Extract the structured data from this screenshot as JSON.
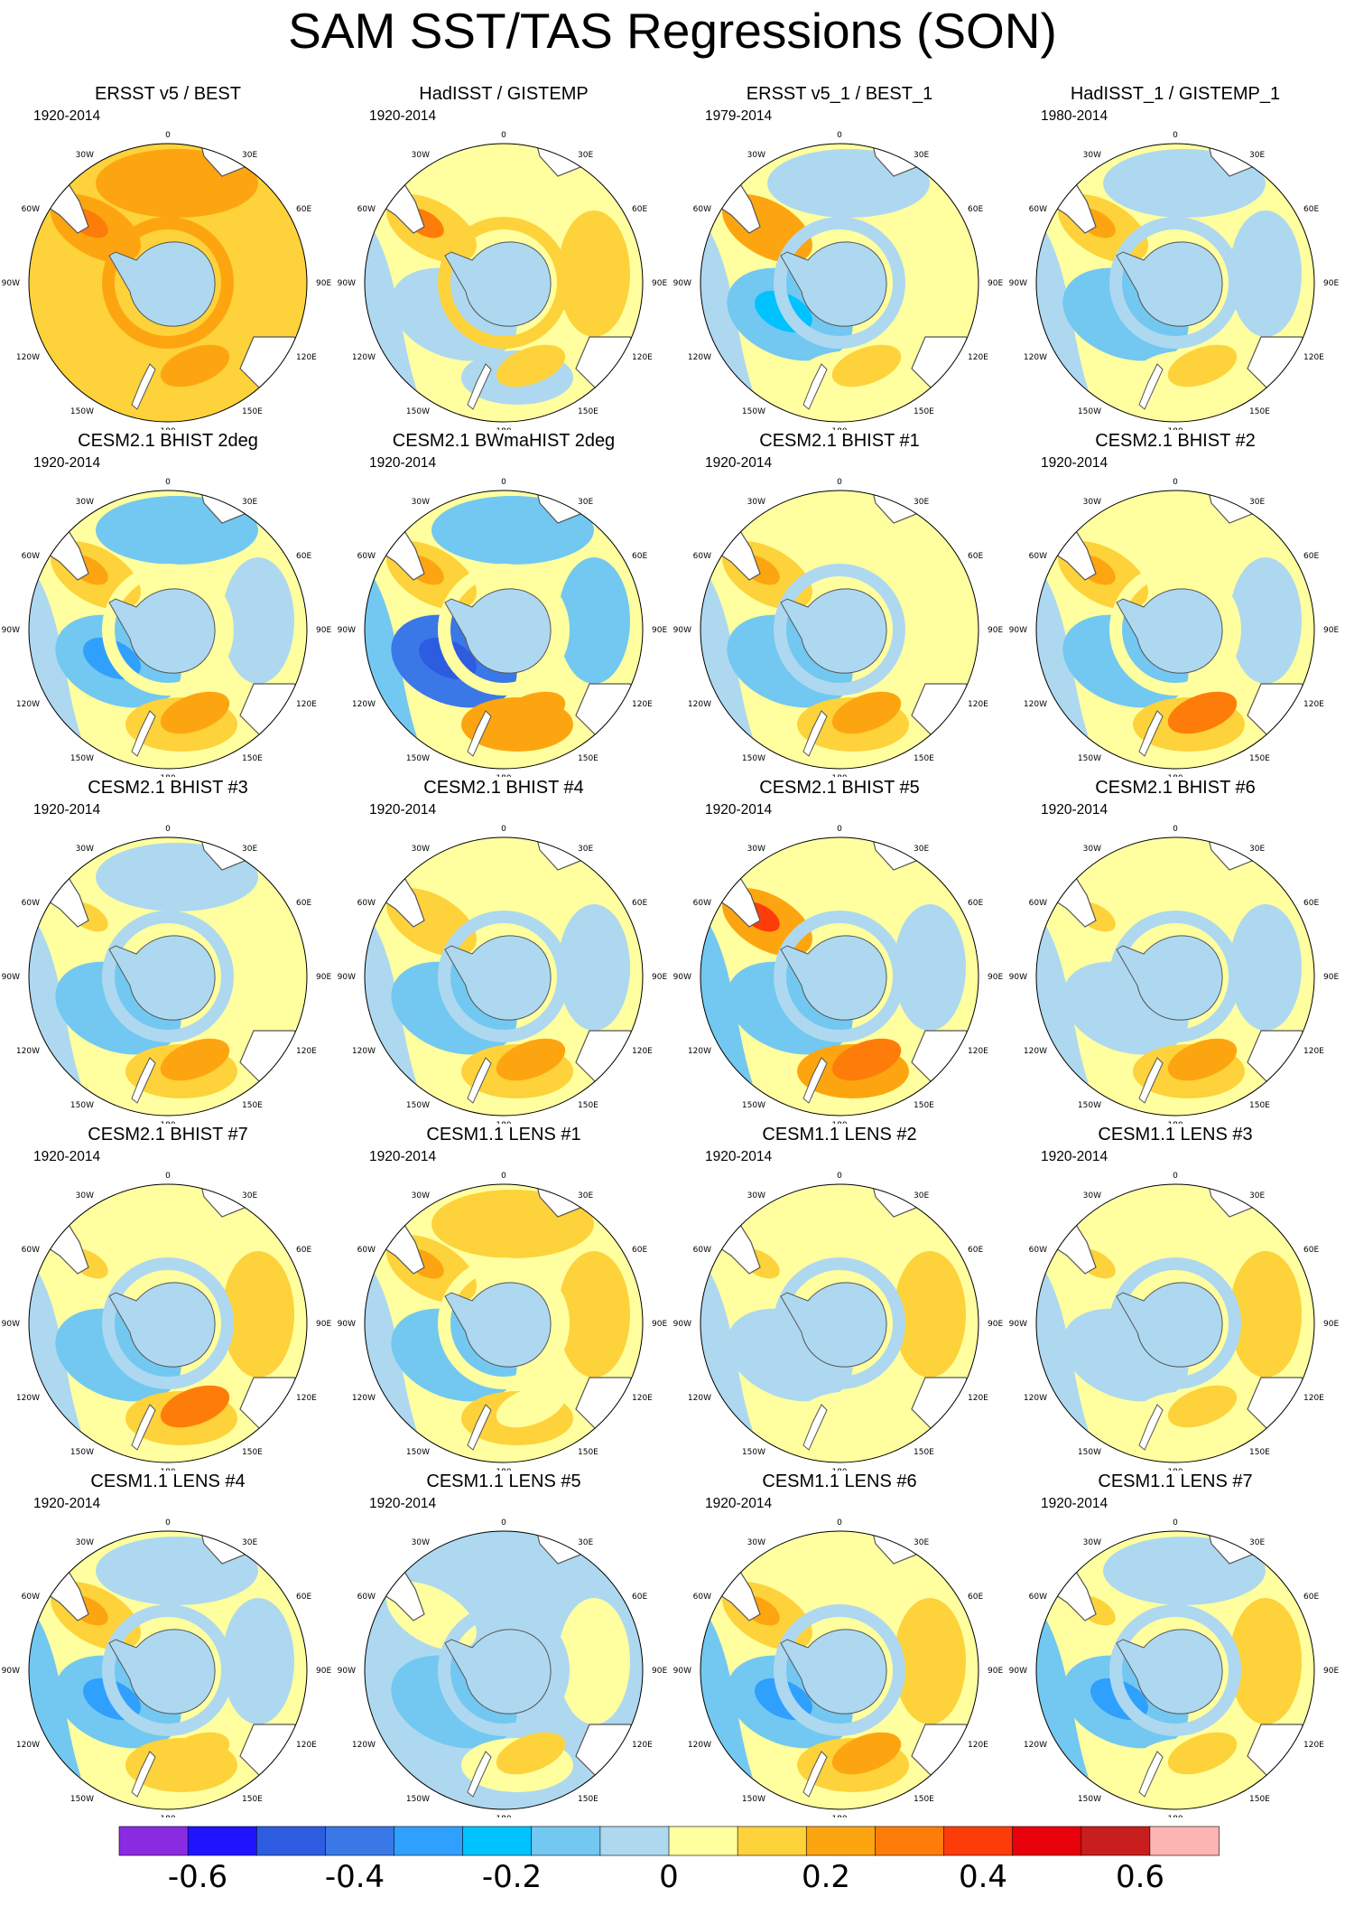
{
  "title": "SAM SST/TAS Regressions (SON)",
  "palette": {
    "ocean_default": "#ffffa0",
    "antarctica": "#add8f0",
    "coast": "#555555",
    "land": "#ffffff"
  },
  "longitude_labels": [
    "0",
    "30E",
    "60E",
    "90E",
    "120E",
    "150E",
    "180",
    "150W",
    "120W",
    "90W",
    "60W",
    "30W"
  ],
  "panels": [
    {
      "title": "ERSST v5 / BEST",
      "period": "1920-2014",
      "pattern": {
        "base": "#fdd23a",
        "rw": "#fdd23a",
        "pac": "#fdd23a",
        "ind": "#fdd23a",
        "aus": "#fda510",
        "sa": "#fda510",
        "sa_core": "#fe7d0a",
        "ring": "#fda510",
        "atl": "#fda510",
        "spac": "#fdd23a"
      }
    },
    {
      "title": "HadISST / GISTEMP",
      "period": "1920-2014",
      "pattern": {
        "base": "#ffffa0",
        "rw": "#add8f0",
        "pac": "#add8f0",
        "ind": "#fdd23a",
        "aus": "#fdd23a",
        "sa": "#fdd23a",
        "sa_core": "#fe7d0a",
        "ring": "#fdd23a",
        "atl": "#ffffa0",
        "spac": "#add8f0"
      }
    },
    {
      "title": "ERSST v5_1 / BEST_1",
      "period": "1979-2014",
      "pattern": {
        "base": "#ffffa0",
        "rw": "#add8f0",
        "pac": "#72c8f0",
        "pac_core": "#00c2ff",
        "ind": "#ffffa0",
        "aus": "#fdd23a",
        "sa": "#fda510",
        "sa_core": "#fda510",
        "ring": "#add8f0",
        "atl": "#add8f0",
        "spac": "#ffffa0"
      }
    },
    {
      "title": "HadISST_1 / GISTEMP_1",
      "period": "1980-2014",
      "pattern": {
        "base": "#ffffa0",
        "rw": "#add8f0",
        "pac": "#72c8f0",
        "ind": "#add8f0",
        "aus": "#fdd23a",
        "sa": "#fdd23a",
        "sa_core": "#fda510",
        "ring": "#add8f0",
        "atl": "#add8f0",
        "spac": "#ffffa0"
      }
    },
    {
      "title": "CESM2.1 BHIST 2deg",
      "period": "1920-2014",
      "pattern": {
        "base": "#ffffa0",
        "rw": "#add8f0",
        "pac": "#72c8f0",
        "pac_core": "#30a0ff",
        "ind": "#add8f0",
        "aus": "#fda510",
        "sa": "#fdd23a",
        "sa_core": "#fda510",
        "ring": "#ffffa0",
        "atl": "#72c8f0",
        "spac": "#fdd23a"
      }
    },
    {
      "title": "CESM2.1 BWmaHIST 2deg",
      "period": "1920-2014",
      "pattern": {
        "base": "#ffffa0",
        "rw": "#72c8f0",
        "pac": "#3a78e8",
        "pac_core": "#2e5ce0",
        "ind": "#72c8f0",
        "aus": "#fda510",
        "sa": "#fdd23a",
        "sa_core": "#fda510",
        "ring": "#ffffa0",
        "atl": "#72c8f0",
        "spac": "#fda510"
      }
    },
    {
      "title": "CESM2.1 BHIST #1",
      "period": "1920-2014",
      "pattern": {
        "base": "#ffffa0",
        "rw": "#add8f0",
        "pac": "#72c8f0",
        "ind": "#ffffa0",
        "aus": "#fda510",
        "sa": "#fdd23a",
        "sa_core": "#fda510",
        "ring": "#add8f0",
        "atl": "#ffffa0",
        "spac": "#fdd23a"
      }
    },
    {
      "title": "CESM2.1 BHIST #2",
      "period": "1920-2014",
      "pattern": {
        "base": "#ffffa0",
        "rw": "#add8f0",
        "pac": "#72c8f0",
        "ind": "#add8f0",
        "aus": "#fe7d0a",
        "sa": "#fdd23a",
        "sa_core": "#fda510",
        "ring": "#ffffa0",
        "atl": "#ffffa0",
        "spac": "#fdd23a"
      }
    },
    {
      "title": "CESM2.1 BHIST #3",
      "period": "1920-2014",
      "pattern": {
        "base": "#ffffa0",
        "rw": "#add8f0",
        "pac": "#72c8f0",
        "ind": "#ffffa0",
        "aus": "#fda510",
        "sa": "#ffffa0",
        "sa_core": "#fdd23a",
        "ring": "#add8f0",
        "atl": "#add8f0",
        "spac": "#fdd23a"
      }
    },
    {
      "title": "CESM2.1 BHIST #4",
      "period": "1920-2014",
      "pattern": {
        "base": "#ffffa0",
        "rw": "#add8f0",
        "pac": "#72c8f0",
        "ind": "#add8f0",
        "aus": "#fda510",
        "sa": "#fdd23a",
        "sa_core": "#fdd23a",
        "ring": "#add8f0",
        "atl": "#ffffa0",
        "spac": "#fdd23a"
      }
    },
    {
      "title": "CESM2.1 BHIST #5",
      "period": "1920-2014",
      "pattern": {
        "base": "#ffffa0",
        "rw": "#72c8f0",
        "pac": "#72c8f0",
        "ind": "#add8f0",
        "aus": "#fe7d0a",
        "sa": "#fda510",
        "sa_core": "#fe3c0a",
        "ring": "#add8f0",
        "atl": "#ffffa0",
        "spac": "#fda510"
      }
    },
    {
      "title": "CESM2.1 BHIST #6",
      "period": "1920-2014",
      "pattern": {
        "base": "#ffffa0",
        "rw": "#add8f0",
        "pac": "#add8f0",
        "ind": "#add8f0",
        "aus": "#fda510",
        "sa": "#ffffa0",
        "sa_core": "#fdd23a",
        "ring": "#add8f0",
        "atl": "#ffffa0",
        "spac": "#fdd23a"
      }
    },
    {
      "title": "CESM2.1 BHIST #7",
      "period": "1920-2014",
      "pattern": {
        "base": "#ffffa0",
        "rw": "#add8f0",
        "pac": "#72c8f0",
        "ind": "#fdd23a",
        "aus": "#fe7d0a",
        "sa": "#ffffa0",
        "sa_core": "#fdd23a",
        "ring": "#add8f0",
        "atl": "#ffffa0",
        "spac": "#fdd23a"
      }
    },
    {
      "title": "CESM1.1 LENS #1",
      "period": "1920-2014",
      "pattern": {
        "base": "#ffffa0",
        "rw": "#add8f0",
        "pac": "#72c8f0",
        "ind": "#fdd23a",
        "aus": "#ffffa0",
        "sa": "#fdd23a",
        "sa_core": "#fda510",
        "ring": "#ffffa0",
        "atl": "#fdd23a",
        "spac": "#fdd23a"
      }
    },
    {
      "title": "CESM1.1 LENS #2",
      "period": "1920-2014",
      "pattern": {
        "base": "#ffffa0",
        "rw": "#add8f0",
        "pac": "#add8f0",
        "ind": "#fdd23a",
        "aus": "#ffffa0",
        "sa": "#ffffa0",
        "sa_core": "#fdd23a",
        "ring": "#add8f0",
        "atl": "#ffffa0",
        "spac": "#ffffa0"
      }
    },
    {
      "title": "CESM1.1 LENS #3",
      "period": "1920-2014",
      "pattern": {
        "base": "#ffffa0",
        "rw": "#add8f0",
        "pac": "#add8f0",
        "ind": "#fdd23a",
        "aus": "#fdd23a",
        "sa": "#ffffa0",
        "sa_core": "#fdd23a",
        "ring": "#add8f0",
        "atl": "#ffffa0",
        "spac": "#ffffa0"
      }
    },
    {
      "title": "CESM1.1 LENS #4",
      "period": "1920-2014",
      "pattern": {
        "base": "#ffffa0",
        "rw": "#72c8f0",
        "pac": "#72c8f0",
        "pac_core": "#30a0ff",
        "ind": "#add8f0",
        "aus": "#fdd23a",
        "sa": "#fdd23a",
        "sa_core": "#fda510",
        "ring": "#add8f0",
        "atl": "#add8f0",
        "spac": "#fdd23a"
      }
    },
    {
      "title": "CESM1.1 LENS #5",
      "period": "1920-2014",
      "pattern": {
        "base": "#add8f0",
        "rw": "#add8f0",
        "pac": "#72c8f0",
        "ind": "#ffffa0",
        "aus": "#fdd23a",
        "sa": "#ffffa0",
        "sa_core": "#ffffa0",
        "ring": "#add8f0",
        "atl": "#add8f0",
        "spac": "#ffffa0"
      }
    },
    {
      "title": "CESM1.1 LENS #6",
      "period": "1920-2014",
      "pattern": {
        "base": "#ffffa0",
        "rw": "#72c8f0",
        "pac": "#72c8f0",
        "pac_core": "#30a0ff",
        "ind": "#fdd23a",
        "aus": "#fda510",
        "sa": "#fdd23a",
        "sa_core": "#fda510",
        "ring": "#add8f0",
        "atl": "#ffffa0",
        "spac": "#fdd23a"
      }
    },
    {
      "title": "CESM1.1 LENS #7",
      "period": "1920-2014",
      "pattern": {
        "base": "#ffffa0",
        "rw": "#72c8f0",
        "pac": "#72c8f0",
        "pac_core": "#30a0ff",
        "ind": "#fdd23a",
        "aus": "#fdd23a",
        "sa": "#ffffa0",
        "sa_core": "#fdd23a",
        "ring": "#add8f0",
        "atl": "#add8f0",
        "spac": "#ffffa0"
      }
    }
  ],
  "chart_data": {
    "type": "heatmap",
    "title": "SAM SST/TAS Regressions (SON)",
    "projection": "south-polar-stereographic",
    "layout": "5 rows x 4 columns",
    "colorbar": {
      "colors": [
        "#8a2be2",
        "#1e14ff",
        "#2e5ce0",
        "#3a78e8",
        "#30a0ff",
        "#00c2ff",
        "#72c8f0",
        "#add8f0",
        "#ffffa0",
        "#fdd23a",
        "#fda510",
        "#fe7d0a",
        "#fe3c0a",
        "#e8000a",
        "#c81e1e",
        "#ffb4b4"
      ],
      "ticks": [
        -0.6,
        -0.4,
        -0.2,
        0,
        0.2,
        0.4,
        0.6
      ],
      "tick_labels": [
        "-0.6",
        "-0.4",
        "-0.2",
        "0",
        "0.2",
        "0.4",
        "0.6"
      ],
      "range": [
        -0.7,
        0.7
      ],
      "interval": 0.1
    }
  }
}
